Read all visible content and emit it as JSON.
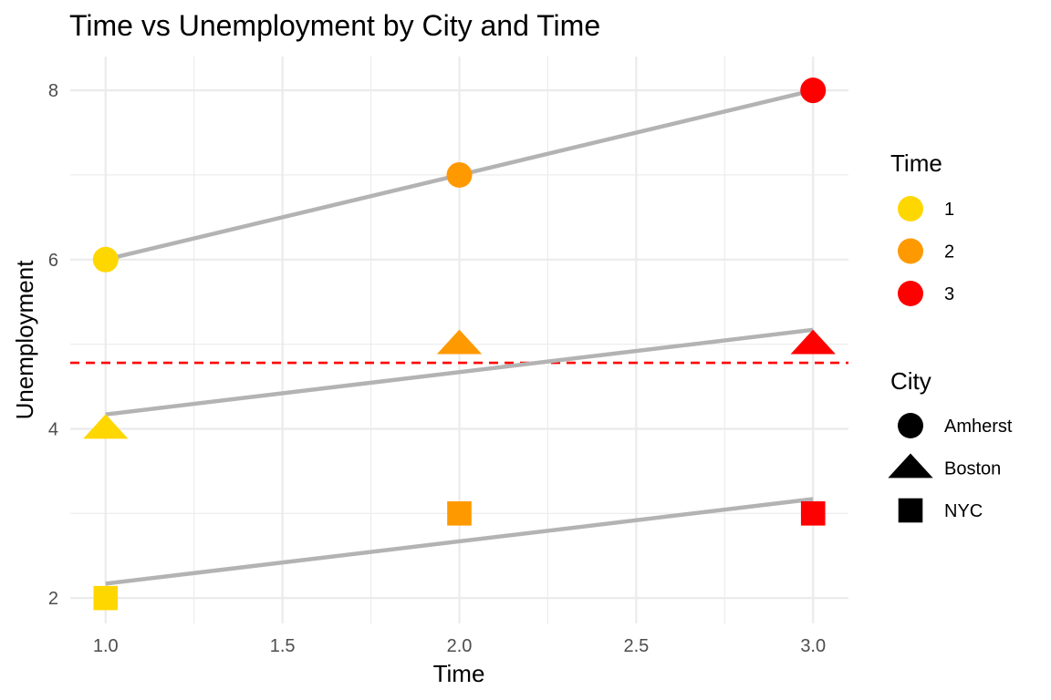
{
  "chart_data": {
    "type": "scatter",
    "title": "Time vs Unemployment by City and Time",
    "xlabel": "Time",
    "ylabel": "Unemployment",
    "xlim": [
      0.9,
      3.1
    ],
    "ylim": [
      1.7,
      8.4
    ],
    "x_ticks": [
      "1.0",
      "1.5",
      "2.0",
      "2.5",
      "3.0"
    ],
    "y_ticks": [
      "2",
      "4",
      "6",
      "8"
    ],
    "grid": true,
    "points": [
      {
        "city": "Amherst",
        "time": 1,
        "x": 1,
        "y": 6
      },
      {
        "city": "Amherst",
        "time": 2,
        "x": 2,
        "y": 7
      },
      {
        "city": "Amherst",
        "time": 3,
        "x": 3,
        "y": 8
      },
      {
        "city": "Boston",
        "time": 1,
        "x": 1,
        "y": 4
      },
      {
        "city": "Boston",
        "time": 2,
        "x": 2,
        "y": 5
      },
      {
        "city": "Boston",
        "time": 3,
        "x": 3,
        "y": 5
      },
      {
        "city": "NYC",
        "time": 1,
        "x": 1,
        "y": 2
      },
      {
        "city": "NYC",
        "time": 2,
        "x": 2,
        "y": 3
      },
      {
        "city": "NYC",
        "time": 3,
        "x": 3,
        "y": 3
      }
    ],
    "trend_lines": [
      {
        "city": "Amherst",
        "x": [
          1,
          3
        ],
        "y": [
          6.0,
          8.0
        ]
      },
      {
        "city": "Boston",
        "x": [
          1,
          3
        ],
        "y": [
          4.17,
          5.17
        ]
      },
      {
        "city": "NYC",
        "x": [
          1,
          3
        ],
        "y": [
          2.17,
          3.17
        ]
      }
    ],
    "reference_line": {
      "y": 4.78,
      "style": "dashed",
      "color": "#ff0000"
    },
    "trend_color": "#b3b3b3",
    "legend_placement": "right",
    "legend_time": {
      "title": "Time",
      "items": [
        {
          "label": "1",
          "color": "#ffd700"
        },
        {
          "label": "2",
          "color": "#ff9900"
        },
        {
          "label": "3",
          "color": "#ff0000"
        }
      ]
    },
    "legend_city": {
      "title": "City",
      "items": [
        {
          "label": "Amherst",
          "shape": "circle"
        },
        {
          "label": "Boston",
          "shape": "triangle"
        },
        {
          "label": "NYC",
          "shape": "square"
        }
      ]
    }
  }
}
